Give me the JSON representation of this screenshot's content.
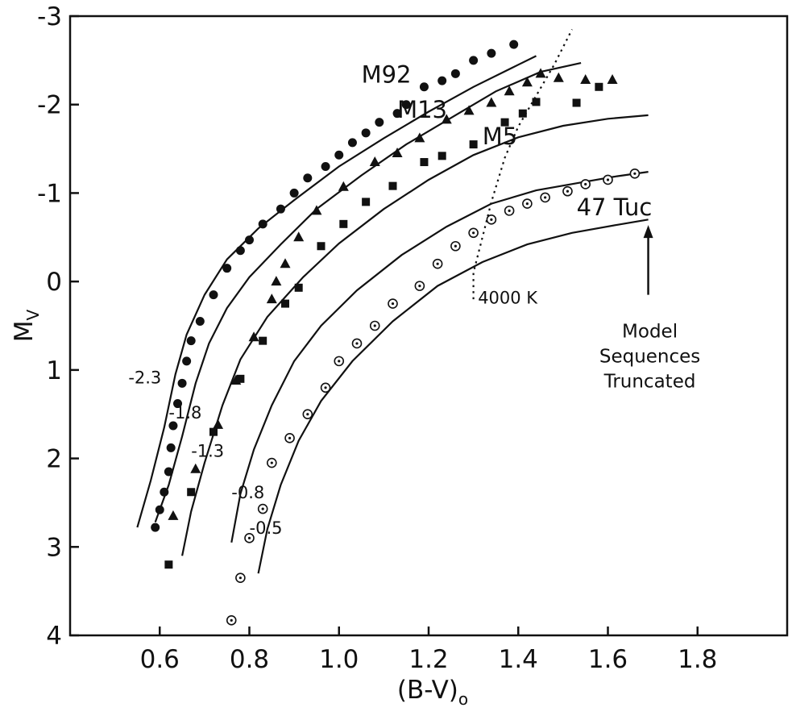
{
  "chart_data": {
    "type": "scatter",
    "title": "",
    "xlabel": "(B-V)",
    "xlabel_subscript": "o",
    "ylabel": "M",
    "ylabel_subscript": "V",
    "xlim": [
      0.4,
      2.0
    ],
    "ylim": [
      4,
      -3
    ],
    "y_inverted": true,
    "grid": false,
    "x_ticks": [
      0.6,
      0.8,
      1.0,
      1.2,
      1.4,
      1.6,
      1.8
    ],
    "x_tick_labels": [
      "0.6",
      "0.8",
      "1.0",
      "1.2",
      "1.4",
      "1.6",
      "1.8"
    ],
    "y_ticks": [
      -3,
      -2,
      -1,
      0,
      1,
      2,
      3,
      4
    ],
    "y_tick_labels": [
      "-3",
      "-2",
      "-1",
      "0",
      "1",
      "2",
      "3",
      "4"
    ],
    "series": [
      {
        "name": "M92",
        "marker": "circle",
        "label_at": [
          1.05,
          -2.25
        ],
        "points": [
          [
            0.59,
            2.78
          ],
          [
            0.6,
            2.58
          ],
          [
            0.61,
            2.38
          ],
          [
            0.62,
            2.15
          ],
          [
            0.625,
            1.88
          ],
          [
            0.63,
            1.63
          ],
          [
            0.64,
            1.38
          ],
          [
            0.65,
            1.15
          ],
          [
            0.66,
            0.9
          ],
          [
            0.67,
            0.67
          ],
          [
            0.69,
            0.45
          ],
          [
            0.72,
            0.15
          ],
          [
            0.75,
            -0.15
          ],
          [
            0.78,
            -0.35
          ],
          [
            0.8,
            -0.47
          ],
          [
            0.83,
            -0.65
          ],
          [
            0.87,
            -0.82
          ],
          [
            0.9,
            -1.0
          ],
          [
            0.93,
            -1.17
          ],
          [
            0.97,
            -1.3
          ],
          [
            1.0,
            -1.43
          ],
          [
            1.03,
            -1.57
          ],
          [
            1.06,
            -1.68
          ],
          [
            1.09,
            -1.8
          ],
          [
            1.13,
            -1.9
          ],
          [
            1.15,
            -2.0
          ],
          [
            1.19,
            -2.2
          ],
          [
            1.23,
            -2.27
          ],
          [
            1.26,
            -2.35
          ],
          [
            1.3,
            -2.5
          ],
          [
            1.34,
            -2.58
          ],
          [
            1.39,
            -2.68
          ]
        ]
      },
      {
        "name": "M13",
        "marker": "triangle",
        "label_at": [
          1.13,
          -1.85
        ],
        "points": [
          [
            0.63,
            2.65
          ],
          [
            0.68,
            2.12
          ],
          [
            0.73,
            1.62
          ],
          [
            0.77,
            1.12
          ],
          [
            0.81,
            0.63
          ],
          [
            0.85,
            0.2
          ],
          [
            0.86,
            0.0
          ],
          [
            0.88,
            -0.2
          ],
          [
            0.91,
            -0.5
          ],
          [
            0.95,
            -0.8
          ],
          [
            1.01,
            -1.07
          ],
          [
            1.08,
            -1.35
          ],
          [
            1.13,
            -1.45
          ],
          [
            1.18,
            -1.62
          ],
          [
            1.24,
            -1.83
          ],
          [
            1.29,
            -1.93
          ],
          [
            1.34,
            -2.02
          ],
          [
            1.38,
            -2.15
          ],
          [
            1.42,
            -2.25
          ],
          [
            1.45,
            -2.35
          ],
          [
            1.49,
            -2.3
          ],
          [
            1.55,
            -2.28
          ],
          [
            1.61,
            -2.28
          ]
        ]
      },
      {
        "name": "M5",
        "marker": "square",
        "label_at": [
          1.32,
          -1.55
        ],
        "points": [
          [
            0.62,
            3.2
          ],
          [
            0.67,
            2.38
          ],
          [
            0.72,
            1.7
          ],
          [
            0.78,
            1.1
          ],
          [
            0.83,
            0.67
          ],
          [
            0.88,
            0.25
          ],
          [
            0.91,
            0.07
          ],
          [
            0.96,
            -0.4
          ],
          [
            1.01,
            -0.65
          ],
          [
            1.06,
            -0.9
          ],
          [
            1.12,
            -1.08
          ],
          [
            1.19,
            -1.35
          ],
          [
            1.23,
            -1.42
          ],
          [
            1.3,
            -1.55
          ],
          [
            1.37,
            -1.8
          ],
          [
            1.41,
            -1.9
          ],
          [
            1.44,
            -2.03
          ],
          [
            1.53,
            -2.02
          ],
          [
            1.58,
            -2.2
          ]
        ]
      },
      {
        "name": "47 Tuc",
        "marker": "circle-dot",
        "label_at": [
          1.53,
          -0.75
        ],
        "points": [
          [
            0.76,
            3.83
          ],
          [
            0.78,
            3.35
          ],
          [
            0.8,
            2.9
          ],
          [
            0.83,
            2.57
          ],
          [
            0.85,
            2.05
          ],
          [
            0.89,
            1.77
          ],
          [
            0.93,
            1.5
          ],
          [
            0.97,
            1.2
          ],
          [
            1.0,
            0.9
          ],
          [
            1.04,
            0.7
          ],
          [
            1.08,
            0.5
          ],
          [
            1.12,
            0.25
          ],
          [
            1.18,
            0.05
          ],
          [
            1.22,
            -0.2
          ],
          [
            1.26,
            -0.4
          ],
          [
            1.3,
            -0.55
          ],
          [
            1.34,
            -0.7
          ],
          [
            1.38,
            -0.8
          ],
          [
            1.42,
            -0.88
          ],
          [
            1.46,
            -0.95
          ],
          [
            1.51,
            -1.02
          ],
          [
            1.55,
            -1.1
          ],
          [
            1.6,
            -1.15
          ],
          [
            1.66,
            -1.22
          ]
        ]
      }
    ],
    "model_sequences": [
      {
        "label": "-2.3",
        "label_at": [
          0.53,
          1.15
        ],
        "points": [
          [
            0.55,
            2.78
          ],
          [
            0.58,
            2.25
          ],
          [
            0.61,
            1.65
          ],
          [
            0.635,
            1.05
          ],
          [
            0.66,
            0.6
          ],
          [
            0.7,
            0.15
          ],
          [
            0.75,
            -0.25
          ],
          [
            0.82,
            -0.6
          ],
          [
            0.9,
            -0.92
          ],
          [
            1.0,
            -1.3
          ],
          [
            1.1,
            -1.62
          ],
          [
            1.2,
            -1.92
          ],
          [
            1.3,
            -2.2
          ],
          [
            1.4,
            -2.45
          ],
          [
            1.44,
            -2.55
          ]
        ]
      },
      {
        "label": "-1.8",
        "label_at": [
          0.62,
          1.55
        ],
        "points": [
          [
            0.59,
            2.72
          ],
          [
            0.62,
            2.3
          ],
          [
            0.65,
            1.75
          ],
          [
            0.68,
            1.15
          ],
          [
            0.71,
            0.7
          ],
          [
            0.75,
            0.3
          ],
          [
            0.8,
            -0.05
          ],
          [
            0.87,
            -0.42
          ],
          [
            0.95,
            -0.82
          ],
          [
            1.05,
            -1.2
          ],
          [
            1.15,
            -1.55
          ],
          [
            1.25,
            -1.85
          ],
          [
            1.35,
            -2.15
          ],
          [
            1.45,
            -2.37
          ],
          [
            1.54,
            -2.47
          ]
        ]
      },
      {
        "label": "-1.3",
        "label_at": [
          0.67,
          1.98
        ],
        "points": [
          [
            0.65,
            3.1
          ],
          [
            0.67,
            2.6
          ],
          [
            0.7,
            2.05
          ],
          [
            0.74,
            1.4
          ],
          [
            0.78,
            0.88
          ],
          [
            0.84,
            0.4
          ],
          [
            0.92,
            -0.05
          ],
          [
            1.0,
            -0.43
          ],
          [
            1.1,
            -0.82
          ],
          [
            1.2,
            -1.15
          ],
          [
            1.3,
            -1.43
          ],
          [
            1.4,
            -1.63
          ],
          [
            1.5,
            -1.76
          ],
          [
            1.6,
            -1.84
          ],
          [
            1.69,
            -1.88
          ]
        ]
      },
      {
        "label": "-0.8",
        "label_at": [
          0.76,
          2.45
        ],
        "points": [
          [
            0.76,
            2.95
          ],
          [
            0.78,
            2.4
          ],
          [
            0.81,
            1.9
          ],
          [
            0.85,
            1.4
          ],
          [
            0.9,
            0.9
          ],
          [
            0.96,
            0.5
          ],
          [
            1.04,
            0.1
          ],
          [
            1.14,
            -0.3
          ],
          [
            1.24,
            -0.62
          ],
          [
            1.34,
            -0.88
          ],
          [
            1.44,
            -1.03
          ],
          [
            1.54,
            -1.12
          ],
          [
            1.62,
            -1.19
          ],
          [
            1.69,
            -1.24
          ]
        ]
      },
      {
        "label": "-0.5",
        "label_at": [
          0.8,
          2.85
        ],
        "points": [
          [
            0.82,
            3.3
          ],
          [
            0.84,
            2.8
          ],
          [
            0.87,
            2.3
          ],
          [
            0.91,
            1.8
          ],
          [
            0.96,
            1.35
          ],
          [
            1.03,
            0.9
          ],
          [
            1.12,
            0.45
          ],
          [
            1.22,
            0.05
          ],
          [
            1.32,
            -0.22
          ],
          [
            1.42,
            -0.42
          ],
          [
            1.52,
            -0.55
          ],
          [
            1.62,
            -0.64
          ],
          [
            1.69,
            -0.7
          ]
        ]
      }
    ],
    "isotherm": {
      "label": "4000 K",
      "label_at": [
        1.31,
        0.25
      ],
      "points": [
        [
          1.3,
          0.2
        ],
        [
          1.3,
          -0.1
        ],
        [
          1.32,
          -0.5
        ],
        [
          1.34,
          -0.9
        ],
        [
          1.37,
          -1.4
        ],
        [
          1.4,
          -1.75
        ],
        [
          1.44,
          -2.1
        ],
        [
          1.48,
          -2.45
        ],
        [
          1.52,
          -2.85
        ]
      ]
    },
    "annotation": {
      "lines": [
        "Model",
        "Sequences",
        "Truncated"
      ],
      "arrow_from": [
        1.69,
        0.15
      ],
      "arrow_to": [
        1.69,
        -0.62
      ],
      "text_at": [
        1.69,
        0.45
      ]
    }
  }
}
